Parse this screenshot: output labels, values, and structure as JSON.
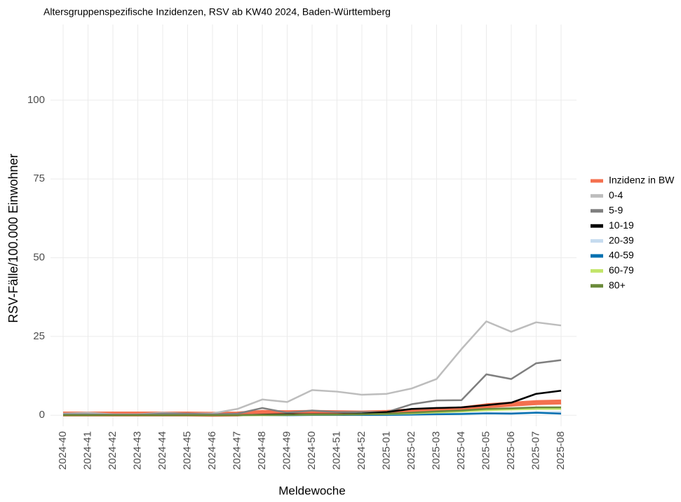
{
  "chart_data": {
    "type": "line",
    "title": "Altersgruppenspezifische Inzidenzen, RSV ab KW40 2024, Baden-Württemberg",
    "x_label": "Meldewoche",
    "y_label": "RSV-Fälle/100.000 Einwohner",
    "categories": [
      "2024-40",
      "2024-41",
      "2024-42",
      "2024-43",
      "2024-44",
      "2024-45",
      "2024-46",
      "2024-47",
      "2024-48",
      "2024-49",
      "2024-50",
      "2024-51",
      "2024-52",
      "2025-01",
      "2025-02",
      "2025-03",
      "2025-04",
      "2025-05",
      "2025-06",
      "2025-07",
      "2025-08"
    ],
    "series": [
      {
        "name": "Inzidenz in BW",
        "color": "#f4704f",
        "values": [
          0.4,
          0.4,
          0.4,
          0.4,
          0.4,
          0.4,
          0.3,
          0.4,
          0.9,
          0.8,
          0.9,
          0.8,
          0.7,
          0.9,
          1.4,
          1.7,
          2.0,
          3.0,
          3.5,
          4.0,
          4.2
        ]
      },
      {
        "name": "0-4",
        "color": "#bdbdbd",
        "values": [
          0.5,
          0.8,
          0.3,
          0.3,
          0.8,
          0.5,
          0.6,
          2.0,
          5.0,
          4.2,
          8.0,
          7.5,
          6.5,
          6.8,
          8.5,
          11.5,
          21.0,
          29.8,
          26.5,
          29.5,
          28.5
        ]
      },
      {
        "name": "5-9",
        "color": "#7f7f7f",
        "values": [
          0.3,
          0.3,
          0.2,
          0.2,
          0.5,
          0.5,
          0.3,
          0.5,
          2.3,
          0.8,
          1.5,
          1.0,
          1.0,
          1.0,
          3.5,
          4.7,
          4.8,
          13.0,
          11.5,
          16.5,
          17.5
        ]
      },
      {
        "name": "10-19",
        "color": "#000000",
        "values": [
          0,
          0,
          0,
          0,
          0,
          0,
          0,
          0,
          0.2,
          0.3,
          0.3,
          0.3,
          0.5,
          1.0,
          2.0,
          2.3,
          2.5,
          3.2,
          4.0,
          6.8,
          7.8
        ]
      },
      {
        "name": "20-39",
        "color": "#c6dbef",
        "values": [
          0,
          0,
          0,
          0,
          0,
          0,
          0,
          0,
          0.1,
          0.1,
          0.2,
          0.2,
          0.2,
          0.3,
          0.4,
          0.5,
          0.6,
          0.8,
          0.8,
          1.0,
          1.0
        ]
      },
      {
        "name": "40-59",
        "color": "#0570b0",
        "values": [
          0,
          0,
          0,
          0,
          0,
          0,
          0,
          0,
          0,
          0,
          0.1,
          0.1,
          0.1,
          0.1,
          0.2,
          0.3,
          0.4,
          0.6,
          0.5,
          0.8,
          0.5
        ]
      },
      {
        "name": "60-79",
        "color": "#c2e56a",
        "values": [
          0,
          0,
          0,
          0,
          0,
          0,
          0,
          0,
          0,
          0.1,
          0.2,
          0.2,
          0.3,
          0.4,
          0.6,
          0.9,
          1.2,
          1.6,
          1.8,
          2.0,
          2.0
        ]
      },
      {
        "name": "80+",
        "color": "#6a8a3a",
        "values": [
          0,
          0,
          0,
          0,
          0,
          0,
          0,
          0,
          0.1,
          0.1,
          0.2,
          0.2,
          0.3,
          0.5,
          0.8,
          1.2,
          1.5,
          2.0,
          2.2,
          2.5,
          2.5
        ]
      }
    ],
    "ylim": [
      -3.5,
      124
    ],
    "yticks": [
      0,
      25,
      50,
      75,
      100
    ],
    "grid": true
  }
}
